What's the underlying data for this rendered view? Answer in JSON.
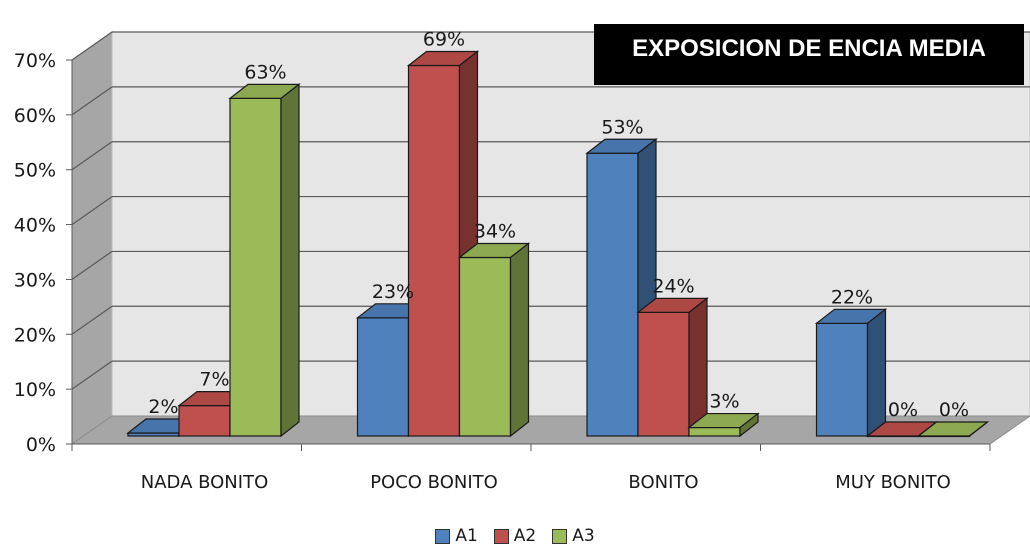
{
  "chart_data": {
    "type": "bar",
    "title": "EXPOSICION DE ENCIA MEDIA",
    "categories": [
      "NADA BONITO",
      "POCO BONITO",
      "BONITO",
      "MUY BONITO"
    ],
    "series": [
      {
        "name": "A1",
        "values": [
          2,
          23,
          53,
          22
        ],
        "labels": [
          "2%",
          "23%",
          "53%",
          "22%"
        ]
      },
      {
        "name": "A2",
        "values": [
          7,
          69,
          24,
          0
        ],
        "labels": [
          "7%",
          "69%",
          "24%",
          "0%"
        ]
      },
      {
        "name": "A3",
        "values": [
          63,
          34,
          3,
          0
        ],
        "labels": [
          "63%",
          "34%",
          "3%",
          "0%"
        ]
      }
    ],
    "yticks": [
      "0%",
      "10%",
      "20%",
      "30%",
      "40%",
      "50%",
      "60%",
      "70%"
    ],
    "ylim": [
      0,
      70
    ],
    "grid": true,
    "legend_position": "bottom",
    "colors": {
      "A1": "#4f81bd",
      "A2": "#c0504d",
      "A3": "#9bbb59"
    }
  }
}
